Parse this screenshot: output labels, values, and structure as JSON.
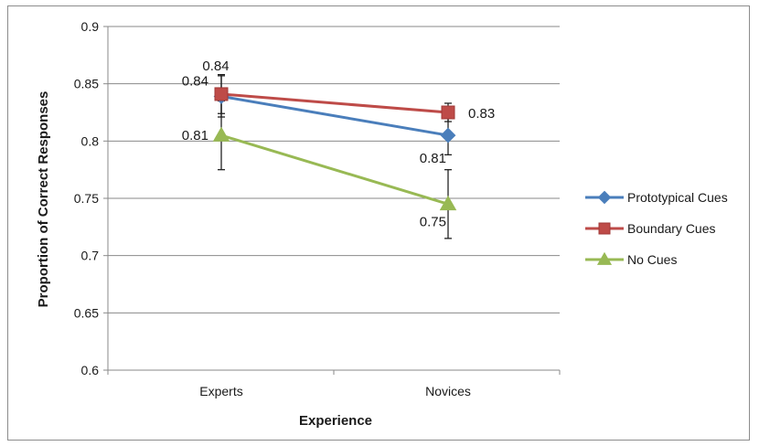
{
  "chart_data": {
    "type": "line",
    "title": "",
    "xlabel": "Experience",
    "ylabel": "Proportion of Correct Responses",
    "categories": [
      "Experts",
      "Novices"
    ],
    "ylim": [
      0.6,
      0.9
    ],
    "yticks": [
      "0.6",
      "0.65",
      "0.7",
      "0.75",
      "0.8",
      "0.85",
      "0.9"
    ],
    "grid": true,
    "legend_position": "right",
    "series": [
      {
        "name": "Prototypical Cues",
        "color": "#4a7ebb",
        "marker": "diamond",
        "values": [
          0.839,
          0.805
        ],
        "labels": [
          "0.84",
          "0.81"
        ],
        "error": [
          0.018,
          0.017
        ]
      },
      {
        "name": "Boundary Cues",
        "color": "#be4b48",
        "marker": "square",
        "values": [
          0.841,
          0.825
        ],
        "labels": [
          "0.84",
          "0.83"
        ],
        "error": [
          0.017,
          0.008
        ]
      },
      {
        "name": "No Cues",
        "color": "#98b954",
        "marker": "triangle",
        "values": [
          0.805,
          0.745
        ],
        "labels": [
          "0.81",
          "0.75"
        ],
        "error": [
          0.03,
          0.03
        ]
      }
    ]
  }
}
